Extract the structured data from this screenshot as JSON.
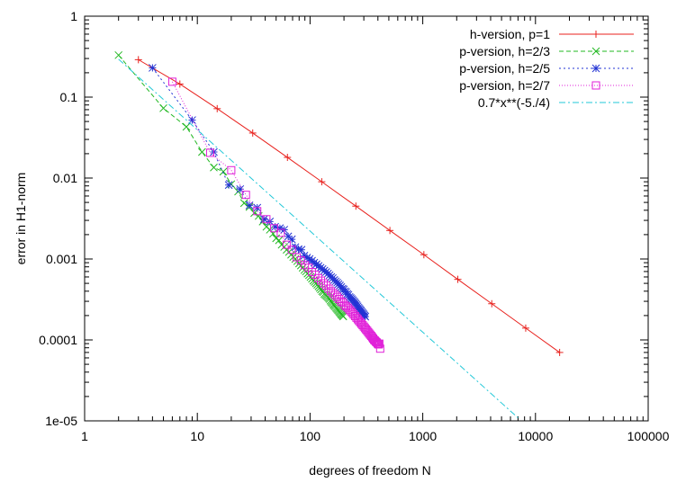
{
  "chart_data": {
    "type": "line",
    "title": "",
    "xlabel": "degrees of freedom N",
    "ylabel": "error in H1-norm",
    "xscale": "log",
    "yscale": "log",
    "xlim": [
      1,
      100000
    ],
    "ylim": [
      1e-05,
      1
    ],
    "grid": false,
    "legend_position": "top-right",
    "x_ticks": [
      {
        "value": 1,
        "label": "1"
      },
      {
        "value": 10,
        "label": "10"
      },
      {
        "value": 100,
        "label": "100"
      },
      {
        "value": 1000,
        "label": "1000"
      },
      {
        "value": 10000,
        "label": "10000"
      },
      {
        "value": 100000,
        "label": "100000"
      }
    ],
    "y_ticks": [
      {
        "value": 1,
        "label": "1"
      },
      {
        "value": 0.1,
        "label": "0.1"
      },
      {
        "value": 0.01,
        "label": "0.01"
      },
      {
        "value": 0.001,
        "label": "0.001"
      },
      {
        "value": 0.0001,
        "label": "0.0001"
      },
      {
        "value": 1e-05,
        "label": "1e-05"
      }
    ],
    "series": [
      {
        "name": "h-version, p=1",
        "color": "#e8211d",
        "marker": "plus",
        "dash": "",
        "points": [
          [
            3,
            0.29
          ],
          [
            7,
            0.145
          ],
          [
            15,
            0.072
          ],
          [
            31,
            0.036
          ],
          [
            63,
            0.018
          ],
          [
            127,
            0.009
          ],
          [
            255,
            0.0045
          ],
          [
            511,
            0.00225
          ],
          [
            1023,
            0.00113
          ],
          [
            2047,
            0.00056
          ],
          [
            4095,
            0.00028
          ],
          [
            8191,
            0.00014
          ],
          [
            16383,
            7e-05
          ]
        ]
      },
      {
        "name": "p-version, h=2/3",
        "color": "#22b822",
        "marker": "x",
        "dash": "5,3",
        "points": [
          [
            2,
            0.33
          ],
          [
            5,
            0.073
          ],
          [
            8,
            0.043
          ],
          [
            11,
            0.021
          ],
          [
            14,
            0.0135
          ],
          [
            17,
            0.012
          ],
          [
            20,
            0.0084
          ],
          [
            23,
            0.0068
          ],
          [
            26,
            0.0049
          ],
          [
            29,
            0.0044
          ],
          [
            32,
            0.0037
          ],
          [
            35,
            0.0034
          ],
          [
            38,
            0.0029
          ],
          [
            41,
            0.0025
          ],
          [
            44,
            0.0023
          ],
          [
            47,
            0.00205
          ],
          [
            50,
            0.0018
          ],
          [
            53,
            0.0017
          ],
          [
            56,
            0.0015
          ],
          [
            59,
            0.00141
          ],
          [
            62,
            0.0013
          ],
          [
            65,
            0.00122
          ],
          [
            68,
            0.00113
          ],
          [
            71,
            0.00106
          ],
          [
            74,
            0.001
          ],
          [
            77,
            0.00094
          ],
          [
            80,
            0.00088
          ],
          [
            83,
            0.00083
          ],
          [
            86,
            0.00078
          ],
          [
            89,
            0.00073
          ],
          [
            92,
            0.0007
          ],
          [
            95,
            0.00066
          ],
          [
            98,
            0.00063
          ],
          [
            101,
            0.0006
          ],
          [
            104,
            0.00057
          ],
          [
            107,
            0.00054
          ],
          [
            110,
            0.00052
          ],
          [
            113,
            0.0005
          ],
          [
            116,
            0.00048
          ],
          [
            119,
            0.00046
          ],
          [
            122,
            0.00044
          ],
          [
            125,
            0.00042
          ],
          [
            128,
            0.0004
          ],
          [
            131,
            0.00039
          ],
          [
            134,
            0.00037
          ],
          [
            137,
            0.00036
          ],
          [
            140,
            0.00035
          ],
          [
            143,
            0.00034
          ],
          [
            146,
            0.00033
          ],
          [
            149,
            0.00032
          ],
          [
            152,
            0.000305
          ],
          [
            155,
            0.000295
          ],
          [
            158,
            0.000285
          ],
          [
            161,
            0.000275
          ],
          [
            164,
            0.000267
          ],
          [
            167,
            0.000259
          ],
          [
            170,
            0.00025
          ],
          [
            173,
            0.000243
          ],
          [
            176,
            0.000236
          ],
          [
            179,
            0.00023
          ],
          [
            182,
            0.000223
          ],
          [
            185,
            0.000217
          ],
          [
            188,
            0.00021
          ],
          [
            191,
            0.000205
          ],
          [
            194,
            0.0002
          ],
          [
            197,
            0.000195
          ]
        ]
      },
      {
        "name": "p-version, h=2/5",
        "color": "#2233d4",
        "marker": "star",
        "dash": "2,3",
        "points": [
          [
            4,
            0.23
          ],
          [
            9,
            0.052
          ],
          [
            14,
            0.021
          ],
          [
            19,
            0.0082
          ],
          [
            24,
            0.0073
          ],
          [
            29,
            0.0046
          ],
          [
            34,
            0.0043
          ],
          [
            39,
            0.0031
          ],
          [
            44,
            0.0029
          ],
          [
            49,
            0.0025
          ],
          [
            54,
            0.0024
          ],
          [
            59,
            0.0023
          ],
          [
            64,
            0.0019
          ],
          [
            69,
            0.00175
          ],
          [
            74,
            0.0014
          ],
          [
            79,
            0.00132
          ],
          [
            84,
            0.0013
          ],
          [
            89,
            0.0011
          ],
          [
            94,
            0.00104
          ],
          [
            99,
            0.001
          ],
          [
            104,
            0.00095
          ],
          [
            109,
            0.0009
          ],
          [
            114,
            0.00086
          ],
          [
            119,
            0.00082
          ],
          [
            124,
            0.00078
          ],
          [
            129,
            0.00075
          ],
          [
            134,
            0.00072
          ],
          [
            139,
            0.00069
          ],
          [
            144,
            0.00066
          ],
          [
            149,
            0.00063
          ],
          [
            154,
            0.0006
          ],
          [
            159,
            0.00058
          ],
          [
            164,
            0.00055
          ],
          [
            169,
            0.00053
          ],
          [
            174,
            0.00051
          ],
          [
            179,
            0.00049
          ],
          [
            184,
            0.00047
          ],
          [
            189,
            0.00045
          ],
          [
            194,
            0.00043
          ],
          [
            199,
            0.00042
          ],
          [
            204,
            0.0004
          ],
          [
            209,
            0.00039
          ],
          [
            214,
            0.00037
          ],
          [
            219,
            0.00036
          ],
          [
            224,
            0.00034
          ],
          [
            229,
            0.00033
          ],
          [
            234,
            0.00032
          ],
          [
            239,
            0.00031
          ],
          [
            244,
            0.0003
          ],
          [
            249,
            0.00029
          ],
          [
            254,
            0.00028
          ],
          [
            259,
            0.00027
          ],
          [
            264,
            0.00026
          ],
          [
            269,
            0.00025
          ],
          [
            274,
            0.000242
          ],
          [
            279,
            0.000235
          ],
          [
            284,
            0.000228
          ],
          [
            289,
            0.00022
          ],
          [
            294,
            0.000213
          ],
          [
            299,
            0.000207
          ],
          [
            304,
            0.0002
          ],
          [
            309,
            0.000194
          ]
        ]
      },
      {
        "name": "p-version, h=2/7",
        "color": "#e020d8",
        "marker": "square",
        "dash": "1,2",
        "points": [
          [
            6,
            0.155
          ],
          [
            13,
            0.0205
          ],
          [
            20,
            0.0125
          ],
          [
            27,
            0.0062
          ],
          [
            34,
            0.0039
          ],
          [
            41,
            0.0031
          ],
          [
            48,
            0.0024
          ],
          [
            55,
            0.0021
          ],
          [
            62,
            0.0015
          ],
          [
            69,
            0.0013
          ],
          [
            76,
            0.00105
          ],
          [
            83,
            0.00096
          ],
          [
            90,
            0.00084
          ],
          [
            97,
            0.00078
          ],
          [
            104,
            0.00069
          ],
          [
            111,
            0.00064
          ],
          [
            118,
            0.00058
          ],
          [
            125,
            0.00054
          ],
          [
            132,
            0.0005
          ],
          [
            139,
            0.00047
          ],
          [
            146,
            0.00043
          ],
          [
            153,
            0.0004
          ],
          [
            160,
            0.00038
          ],
          [
            167,
            0.00036
          ],
          [
            174,
            0.00034
          ],
          [
            181,
            0.00032
          ],
          [
            188,
            0.0003
          ],
          [
            195,
            0.00029
          ],
          [
            202,
            0.00027
          ],
          [
            209,
            0.00026
          ],
          [
            216,
            0.00025
          ],
          [
            223,
            0.000237
          ],
          [
            230,
            0.000226
          ],
          [
            237,
            0.000216
          ],
          [
            244,
            0.000206
          ],
          [
            251,
            0.000197
          ],
          [
            258,
            0.000188
          ],
          [
            265,
            0.00018
          ],
          [
            272,
            0.000172
          ],
          [
            279,
            0.000165
          ],
          [
            286,
            0.000158
          ],
          [
            293,
            0.000152
          ],
          [
            300,
            0.000146
          ],
          [
            307,
            0.00014
          ],
          [
            314,
            0.000135
          ],
          [
            321,
            0.00013
          ],
          [
            328,
            0.000125
          ],
          [
            335,
            0.00012
          ],
          [
            342,
            0.000116
          ],
          [
            349,
            0.000112
          ],
          [
            356,
            0.000108
          ],
          [
            363,
            0.000104
          ],
          [
            370,
            0.0001
          ],
          [
            377,
            9.8e-05
          ],
          [
            384,
            9.5e-05
          ],
          [
            391,
            9.3e-05
          ],
          [
            398,
            9e-05
          ],
          [
            405,
            8.8e-05
          ],
          [
            412,
            9e-05
          ],
          [
            419,
            7.8e-05
          ]
        ]
      },
      {
        "name": "0.7*x**(-5./4)",
        "color": "#22c8d8",
        "marker": "none",
        "dash": "7,3,2,3",
        "points": [
          [
            2,
            0.2943
          ],
          [
            5,
            0.0936
          ],
          [
            10,
            0.03937
          ],
          [
            20,
            0.01655
          ],
          [
            50,
            0.005265
          ],
          [
            100,
            0.002214
          ],
          [
            200,
            0.000931
          ],
          [
            500,
            0.000296
          ],
          [
            1000,
            0.0001245
          ],
          [
            2000,
            5.24e-05
          ],
          [
            5000,
            1.66e-05
          ],
          [
            7000,
            1.09e-05
          ]
        ]
      }
    ]
  }
}
